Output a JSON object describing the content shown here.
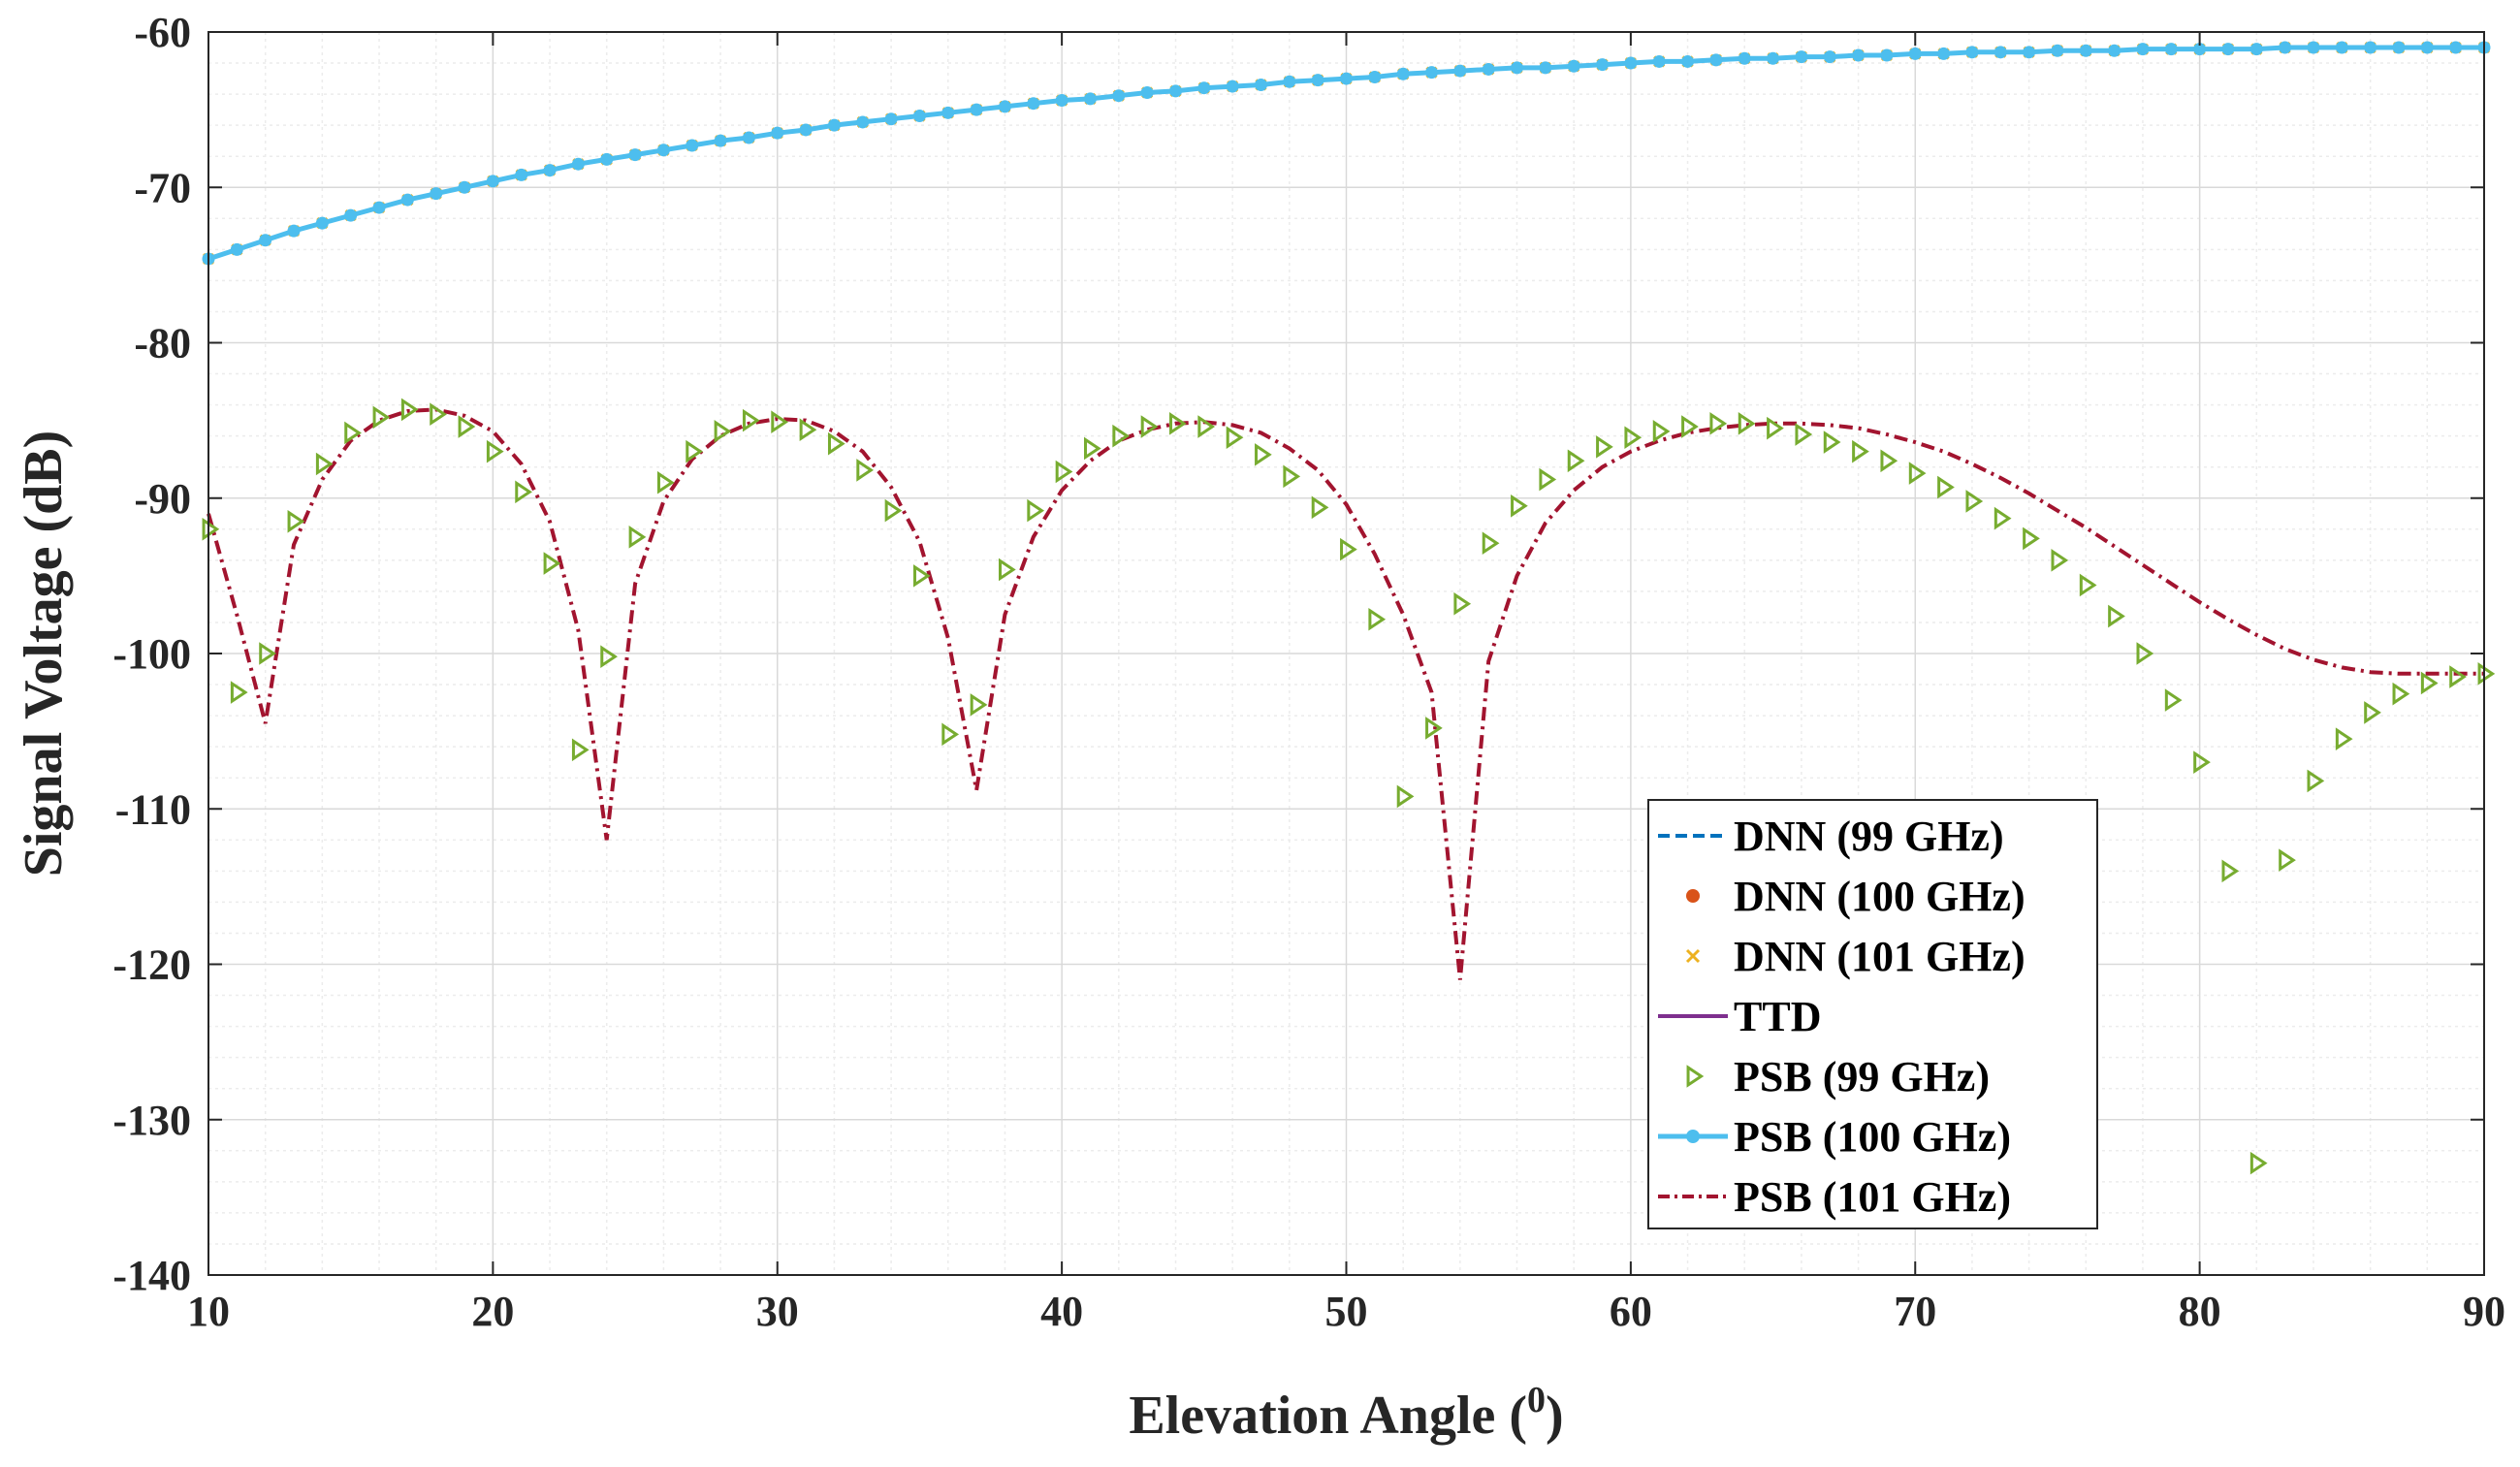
{
  "chart_data": {
    "type": "line",
    "title": "",
    "xlabel": "Elevation Angle (",
    "xlabel_superscript": "0",
    "xlabel_close": ")",
    "ylabel": "Signal Voltage (dB)",
    "xlim": [
      10,
      90
    ],
    "ylim": [
      -140,
      -60
    ],
    "xticks": [
      10,
      20,
      30,
      40,
      50,
      60,
      70,
      80,
      90
    ],
    "yticks": [
      -60,
      -70,
      -80,
      -90,
      -100,
      -110,
      -120,
      -130,
      -140
    ],
    "grid": true,
    "legend_position": "lower-right",
    "series": [
      {
        "name": "DNN (99 GHz)",
        "style": "dashed",
        "color": "#0072BD",
        "x": [
          10,
          11,
          12,
          13,
          14,
          15,
          16,
          17,
          18,
          19,
          20,
          21,
          22,
          23,
          24,
          25,
          26,
          27,
          28,
          29,
          30,
          31,
          32,
          33,
          34,
          35,
          36,
          37,
          38,
          39,
          40,
          41,
          42,
          43,
          44,
          45,
          46,
          47,
          48,
          49,
          50,
          51,
          52,
          53,
          54,
          55,
          56,
          57,
          58,
          59,
          60,
          61,
          62,
          63,
          64,
          65,
          66,
          67,
          68,
          69,
          70,
          71,
          72,
          73,
          74,
          75,
          76,
          77,
          78,
          79,
          80,
          81,
          82,
          83,
          84,
          85,
          86,
          87,
          88,
          89,
          90
        ],
        "y": [
          -74.6,
          -74.0,
          -73.4,
          -72.8,
          -72.3,
          -71.8,
          -71.3,
          -70.8,
          -70.4,
          -70.0,
          -69.6,
          -69.2,
          -68.9,
          -68.5,
          -68.2,
          -67.9,
          -67.6,
          -67.3,
          -67.0,
          -66.8,
          -66.5,
          -66.3,
          -66.0,
          -65.8,
          -65.6,
          -65.4,
          -65.2,
          -65.0,
          -64.8,
          -64.6,
          -64.4,
          -64.3,
          -64.1,
          -63.9,
          -63.8,
          -63.6,
          -63.5,
          -63.4,
          -63.2,
          -63.1,
          -63.0,
          -62.9,
          -62.7,
          -62.6,
          -62.5,
          -62.4,
          -62.3,
          -62.3,
          -62.2,
          -62.1,
          -62.0,
          -61.9,
          -61.9,
          -61.8,
          -61.7,
          -61.7,
          -61.6,
          -61.6,
          -61.5,
          -61.5,
          -61.4,
          -61.4,
          -61.3,
          -61.3,
          -61.3,
          -61.2,
          -61.2,
          -61.2,
          -61.1,
          -61.1,
          -61.1,
          -61.1,
          -61.1,
          -61.0,
          -61.0,
          -61.0,
          -61.0,
          -61.0,
          -61.0,
          -61.0,
          -61.0
        ]
      },
      {
        "name": "DNN (100 GHz)",
        "style": "dots",
        "color": "#D95319",
        "x": [
          10,
          11,
          12,
          13,
          14,
          15,
          16,
          17,
          18,
          19,
          20,
          21,
          22,
          23,
          24,
          25,
          26,
          27,
          28,
          29,
          30,
          31,
          32,
          33,
          34,
          35,
          36,
          37,
          38,
          39,
          40,
          41,
          42,
          43,
          44,
          45,
          46,
          47,
          48,
          49,
          50,
          51,
          52,
          53,
          54,
          55,
          56,
          57,
          58,
          59,
          60,
          61,
          62,
          63,
          64,
          65,
          66,
          67,
          68,
          69,
          70,
          71,
          72,
          73,
          74,
          75,
          76,
          77,
          78,
          79,
          80,
          81,
          82,
          83,
          84,
          85,
          86,
          87,
          88,
          89,
          90
        ],
        "y": [
          -74.6,
          -74.0,
          -73.4,
          -72.8,
          -72.3,
          -71.8,
          -71.3,
          -70.8,
          -70.4,
          -70.0,
          -69.6,
          -69.2,
          -68.9,
          -68.5,
          -68.2,
          -67.9,
          -67.6,
          -67.3,
          -67.0,
          -66.8,
          -66.5,
          -66.3,
          -66.0,
          -65.8,
          -65.6,
          -65.4,
          -65.2,
          -65.0,
          -64.8,
          -64.6,
          -64.4,
          -64.3,
          -64.1,
          -63.9,
          -63.8,
          -63.6,
          -63.5,
          -63.4,
          -63.2,
          -63.1,
          -63.0,
          -62.9,
          -62.7,
          -62.6,
          -62.5,
          -62.4,
          -62.3,
          -62.3,
          -62.2,
          -62.1,
          -62.0,
          -61.9,
          -61.9,
          -61.8,
          -61.7,
          -61.7,
          -61.6,
          -61.6,
          -61.5,
          -61.5,
          -61.4,
          -61.4,
          -61.3,
          -61.3,
          -61.3,
          -61.2,
          -61.2,
          -61.2,
          -61.1,
          -61.1,
          -61.1,
          -61.1,
          -61.1,
          -61.0,
          -61.0,
          -61.0,
          -61.0,
          -61.0,
          -61.0,
          -61.0,
          -61.0
        ]
      },
      {
        "name": "DNN (101 GHz)",
        "style": "crosses",
        "color": "#EDB120",
        "x": [
          10,
          11,
          12,
          13,
          14,
          15,
          16,
          17,
          18,
          19,
          20,
          21,
          22,
          23,
          24,
          25,
          26,
          27,
          28,
          29,
          30,
          31,
          32,
          33,
          34,
          35,
          36,
          37,
          38,
          39,
          40,
          41,
          42,
          43,
          44,
          45,
          46,
          47,
          48,
          49,
          50,
          51,
          52,
          53,
          54,
          55,
          56,
          57,
          58,
          59,
          60,
          61,
          62,
          63,
          64,
          65,
          66,
          67,
          68,
          69,
          70,
          71,
          72,
          73,
          74,
          75,
          76,
          77,
          78,
          79,
          80,
          81,
          82,
          83,
          84,
          85,
          86,
          87,
          88,
          89,
          90
        ],
        "y": [
          -74.6,
          -74.0,
          -73.4,
          -72.8,
          -72.3,
          -71.8,
          -71.3,
          -70.8,
          -70.4,
          -70.0,
          -69.6,
          -69.2,
          -68.9,
          -68.5,
          -68.2,
          -67.9,
          -67.6,
          -67.3,
          -67.0,
          -66.8,
          -66.5,
          -66.3,
          -66.0,
          -65.8,
          -65.6,
          -65.4,
          -65.2,
          -65.0,
          -64.8,
          -64.6,
          -64.4,
          -64.3,
          -64.1,
          -63.9,
          -63.8,
          -63.6,
          -63.5,
          -63.4,
          -63.2,
          -63.1,
          -63.0,
          -62.9,
          -62.7,
          -62.6,
          -62.5,
          -62.4,
          -62.3,
          -62.3,
          -62.2,
          -62.1,
          -62.0,
          -61.9,
          -61.9,
          -61.8,
          -61.7,
          -61.7,
          -61.6,
          -61.6,
          -61.5,
          -61.5,
          -61.4,
          -61.4,
          -61.3,
          -61.3,
          -61.3,
          -61.2,
          -61.2,
          -61.2,
          -61.1,
          -61.1,
          -61.1,
          -61.1,
          -61.1,
          -61.0,
          -61.0,
          -61.0,
          -61.0,
          -61.0,
          -61.0,
          -61.0,
          -61.0
        ]
      },
      {
        "name": "TTD",
        "style": "solid",
        "color": "#7E2F8E",
        "x": [
          10,
          11,
          12,
          13,
          14,
          15,
          16,
          17,
          18,
          19,
          20,
          21,
          22,
          23,
          24,
          25,
          26,
          27,
          28,
          29,
          30,
          31,
          32,
          33,
          34,
          35,
          36,
          37,
          38,
          39,
          40,
          41,
          42,
          43,
          44,
          45,
          46,
          47,
          48,
          49,
          50,
          51,
          52,
          53,
          54,
          55,
          56,
          57,
          58,
          59,
          60,
          61,
          62,
          63,
          64,
          65,
          66,
          67,
          68,
          69,
          70,
          71,
          72,
          73,
          74,
          75,
          76,
          77,
          78,
          79,
          80,
          81,
          82,
          83,
          84,
          85,
          86,
          87,
          88,
          89,
          90
        ],
        "y": [
          -74.6,
          -74.0,
          -73.4,
          -72.8,
          -72.3,
          -71.8,
          -71.3,
          -70.8,
          -70.4,
          -70.0,
          -69.6,
          -69.2,
          -68.9,
          -68.5,
          -68.2,
          -67.9,
          -67.6,
          -67.3,
          -67.0,
          -66.8,
          -66.5,
          -66.3,
          -66.0,
          -65.8,
          -65.6,
          -65.4,
          -65.2,
          -65.0,
          -64.8,
          -64.6,
          -64.4,
          -64.3,
          -64.1,
          -63.9,
          -63.8,
          -63.6,
          -63.5,
          -63.4,
          -63.2,
          -63.1,
          -63.0,
          -62.9,
          -62.7,
          -62.6,
          -62.5,
          -62.4,
          -62.3,
          -62.3,
          -62.2,
          -62.1,
          -62.0,
          -61.9,
          -61.9,
          -61.8,
          -61.7,
          -61.7,
          -61.6,
          -61.6,
          -61.5,
          -61.5,
          -61.4,
          -61.4,
          -61.3,
          -61.3,
          -61.3,
          -61.2,
          -61.2,
          -61.2,
          -61.1,
          -61.1,
          -61.1,
          -61.1,
          -61.1,
          -61.0,
          -61.0,
          -61.0,
          -61.0,
          -61.0,
          -61.0,
          -61.0,
          -61.0
        ]
      },
      {
        "name": "PSB (99 GHz)",
        "style": "triangles",
        "color": "#77AC30",
        "x": [
          10,
          11,
          12,
          13,
          14,
          15,
          16,
          17,
          18,
          19,
          20,
          21,
          22,
          23,
          24,
          25,
          26,
          27,
          28,
          29,
          30,
          31,
          32,
          33,
          34,
          35,
          36,
          37,
          38,
          39,
          40,
          41,
          42,
          43,
          44,
          45,
          46,
          47,
          48,
          49,
          50,
          51,
          52,
          53,
          54,
          55,
          56,
          57,
          58,
          59,
          60,
          61,
          62,
          63,
          64,
          65,
          66,
          67,
          68,
          69,
          70,
          71,
          72,
          73,
          74,
          75,
          76,
          77,
          78,
          79,
          80,
          81,
          82,
          83,
          84,
          85,
          86,
          87,
          88,
          89,
          90
        ],
        "y": [
          -92.0,
          -102.5,
          -100.0,
          -91.5,
          -87.8,
          -85.8,
          -84.8,
          -84.3,
          -84.6,
          -85.4,
          -87.0,
          -89.6,
          -94.2,
          -106.2,
          -100.2,
          -92.5,
          -89.0,
          -87.0,
          -85.7,
          -85.0,
          -85.1,
          -85.6,
          -86.5,
          -88.2,
          -90.8,
          -95.0,
          -105.2,
          -103.3,
          -94.6,
          -90.8,
          -88.3,
          -86.8,
          -86.0,
          -85.4,
          -85.2,
          -85.4,
          -86.1,
          -87.2,
          -88.6,
          -90.6,
          -93.3,
          -97.8,
          -109.2,
          -104.8,
          -96.8,
          -92.9,
          -90.5,
          -88.8,
          -87.6,
          -86.7,
          -86.1,
          -85.7,
          -85.4,
          -85.2,
          -85.2,
          -85.5,
          -85.9,
          -86.4,
          -87.0,
          -87.6,
          -88.4,
          -89.3,
          -90.2,
          -91.3,
          -92.6,
          -94.0,
          -95.6,
          -97.6,
          -100.0,
          -103.0,
          -107.0,
          -114.0,
          -132.8,
          -113.3,
          -108.2,
          -105.5,
          -103.8,
          -102.6,
          -101.9,
          -101.5,
          -101.3
        ]
      },
      {
        "name": "PSB (100 GHz)",
        "style": "solid-dots",
        "color": "#4DBEEE",
        "x": [
          10,
          11,
          12,
          13,
          14,
          15,
          16,
          17,
          18,
          19,
          20,
          21,
          22,
          23,
          24,
          25,
          26,
          27,
          28,
          29,
          30,
          31,
          32,
          33,
          34,
          35,
          36,
          37,
          38,
          39,
          40,
          41,
          42,
          43,
          44,
          45,
          46,
          47,
          48,
          49,
          50,
          51,
          52,
          53,
          54,
          55,
          56,
          57,
          58,
          59,
          60,
          61,
          62,
          63,
          64,
          65,
          66,
          67,
          68,
          69,
          70,
          71,
          72,
          73,
          74,
          75,
          76,
          77,
          78,
          79,
          80,
          81,
          82,
          83,
          84,
          85,
          86,
          87,
          88,
          89,
          90
        ],
        "y": [
          -74.6,
          -74.0,
          -73.4,
          -72.8,
          -72.3,
          -71.8,
          -71.3,
          -70.8,
          -70.4,
          -70.0,
          -69.6,
          -69.2,
          -68.9,
          -68.5,
          -68.2,
          -67.9,
          -67.6,
          -67.3,
          -67.0,
          -66.8,
          -66.5,
          -66.3,
          -66.0,
          -65.8,
          -65.6,
          -65.4,
          -65.2,
          -65.0,
          -64.8,
          -64.6,
          -64.4,
          -64.3,
          -64.1,
          -63.9,
          -63.8,
          -63.6,
          -63.5,
          -63.4,
          -63.2,
          -63.1,
          -63.0,
          -62.9,
          -62.7,
          -62.6,
          -62.5,
          -62.4,
          -62.3,
          -62.3,
          -62.2,
          -62.1,
          -62.0,
          -61.9,
          -61.9,
          -61.8,
          -61.7,
          -61.7,
          -61.6,
          -61.6,
          -61.5,
          -61.5,
          -61.4,
          -61.4,
          -61.3,
          -61.3,
          -61.3,
          -61.2,
          -61.2,
          -61.2,
          -61.1,
          -61.1,
          -61.1,
          -61.1,
          -61.1,
          -61.0,
          -61.0,
          -61.0,
          -61.0,
          -61.0,
          -61.0,
          -61.0,
          -61.0
        ]
      },
      {
        "name": "PSB (101 GHz)",
        "style": "dashdot",
        "color": "#A2142F",
        "x": [
          10,
          11,
          12,
          13,
          14,
          15,
          16,
          17,
          18,
          19,
          20,
          21,
          22,
          23,
          24,
          25,
          26,
          27,
          28,
          29,
          30,
          31,
          32,
          33,
          34,
          35,
          36,
          37,
          38,
          39,
          40,
          41,
          42,
          43,
          44,
          45,
          46,
          47,
          48,
          49,
          50,
          51,
          52,
          53,
          54,
          55,
          56,
          57,
          58,
          59,
          60,
          61,
          62,
          63,
          64,
          65,
          66,
          67,
          68,
          69,
          70,
          71,
          72,
          73,
          74,
          75,
          76,
          77,
          78,
          79,
          80,
          81,
          82,
          83,
          84,
          85,
          86,
          87,
          88,
          89,
          90
        ],
        "y": [
          -91.0,
          -97.5,
          -104.5,
          -93.0,
          -88.8,
          -86.3,
          -85.0,
          -84.4,
          -84.3,
          -84.7,
          -85.7,
          -87.8,
          -91.5,
          -98.5,
          -112.0,
          -95.5,
          -90.2,
          -87.5,
          -86.0,
          -85.2,
          -84.9,
          -85.0,
          -85.7,
          -87.0,
          -89.3,
          -92.8,
          -99.0,
          -108.8,
          -97.5,
          -92.5,
          -89.5,
          -87.6,
          -86.3,
          -85.6,
          -85.2,
          -85.1,
          -85.3,
          -85.8,
          -86.8,
          -88.2,
          -90.4,
          -93.6,
          -97.5,
          -102.5,
          -121.0,
          -100.5,
          -95.0,
          -91.6,
          -89.5,
          -88.0,
          -87.0,
          -86.3,
          -85.8,
          -85.5,
          -85.3,
          -85.2,
          -85.2,
          -85.3,
          -85.5,
          -85.9,
          -86.4,
          -87.0,
          -87.8,
          -88.7,
          -89.7,
          -90.8,
          -91.9,
          -93.1,
          -94.3,
          -95.5,
          -96.7,
          -97.8,
          -98.8,
          -99.7,
          -100.4,
          -100.9,
          -101.2,
          -101.3,
          -101.3,
          -101.3,
          -101.3
        ]
      }
    ]
  }
}
